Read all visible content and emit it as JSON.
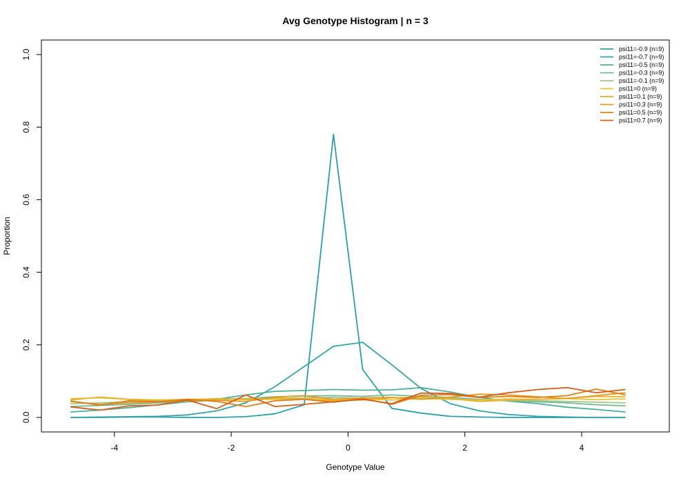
{
  "chart_data": {
    "type": "line",
    "title": "Avg Genotype Histogram | n = 3",
    "xlabel": "Genotype Value",
    "ylabel": "Proportion",
    "xlim": [
      -5.25,
      5.5
    ],
    "ylim": [
      -0.04,
      1.04
    ],
    "xticks": [
      -4,
      -2,
      0,
      2,
      4
    ],
    "yticks": [
      0.0,
      0.2,
      0.4,
      0.6,
      0.8,
      1.0
    ],
    "xtick_labels": [
      "-4",
      "-2",
      "0",
      "2",
      "4"
    ],
    "ytick_labels": [
      "0.0",
      "0.2",
      "0.4",
      "0.6",
      "0.8",
      "1.0"
    ],
    "grid": false,
    "legend_position": "top-right",
    "x": [
      -4.75,
      -4.25,
      -3.75,
      -3.25,
      -2.75,
      -2.25,
      -1.75,
      -1.25,
      -0.75,
      -0.25,
      0.25,
      0.75,
      1.25,
      1.75,
      2.25,
      2.75,
      3.25,
      3.75,
      4.25,
      4.75
    ],
    "series": [
      {
        "name": "psi11=-0.9 (n=9)",
        "color": "#2a9fa8",
        "values": [
          0.0,
          0.0,
          0.001,
          0.001,
          0.0,
          0.0,
          0.002,
          0.01,
          0.035,
          0.78,
          0.132,
          0.025,
          0.012,
          0.003,
          0.001,
          0.0,
          0.0,
          0.0,
          0.0,
          0.0
        ]
      },
      {
        "name": "psi11=-0.7 (n=9)",
        "color": "#36a3a6",
        "values": [
          0.0,
          0.001,
          0.002,
          0.003,
          0.007,
          0.018,
          0.04,
          0.085,
          0.14,
          0.196,
          0.207,
          0.145,
          0.08,
          0.038,
          0.018,
          0.008,
          0.003,
          0.001,
          0.0,
          0.0
        ]
      },
      {
        "name": "psi11=-0.5 (n=9)",
        "color": "#4eae98",
        "values": [
          0.015,
          0.02,
          0.027,
          0.035,
          0.043,
          0.05,
          0.062,
          0.072,
          0.074,
          0.077,
          0.075,
          0.076,
          0.082,
          0.07,
          0.055,
          0.045,
          0.038,
          0.028,
          0.022,
          0.015
        ]
      },
      {
        "name": "psi11=-0.3 (n=9)",
        "color": "#72b993",
        "values": [
          0.03,
          0.033,
          0.036,
          0.04,
          0.043,
          0.048,
          0.052,
          0.057,
          0.059,
          0.06,
          0.058,
          0.062,
          0.058,
          0.055,
          0.05,
          0.046,
          0.043,
          0.04,
          0.035,
          0.032
        ]
      },
      {
        "name": "psi11=-0.1 (n=9)",
        "color": "#9ec789",
        "values": [
          0.038,
          0.04,
          0.043,
          0.046,
          0.048,
          0.05,
          0.052,
          0.053,
          0.054,
          0.055,
          0.053,
          0.054,
          0.052,
          0.05,
          0.048,
          0.047,
          0.046,
          0.044,
          0.042,
          0.04
        ]
      },
      {
        "name": "psi11=0 (n=9)",
        "color": "#e6c43a",
        "values": [
          0.052,
          0.054,
          0.05,
          0.048,
          0.05,
          0.051,
          0.049,
          0.05,
          0.052,
          0.049,
          0.051,
          0.048,
          0.052,
          0.05,
          0.048,
          0.051,
          0.05,
          0.052,
          0.049,
          0.051
        ]
      },
      {
        "name": "psi11=0.1 (n=9)",
        "color": "#e8b12a",
        "values": [
          0.048,
          0.056,
          0.05,
          0.046,
          0.047,
          0.052,
          0.05,
          0.054,
          0.05,
          0.046,
          0.048,
          0.054,
          0.056,
          0.052,
          0.044,
          0.048,
          0.05,
          0.053,
          0.058,
          0.057
        ]
      },
      {
        "name": "psi11=0.3 (n=9)",
        "color": "#e59a1f",
        "values": [
          0.044,
          0.036,
          0.04,
          0.043,
          0.046,
          0.047,
          0.044,
          0.056,
          0.06,
          0.05,
          0.054,
          0.055,
          0.05,
          0.056,
          0.064,
          0.062,
          0.057,
          0.052,
          0.06,
          0.068
        ]
      },
      {
        "name": "psi11=0.5 (n=9)",
        "color": "#e07f1a",
        "values": [
          0.045,
          0.034,
          0.046,
          0.043,
          0.05,
          0.044,
          0.03,
          0.046,
          0.05,
          0.042,
          0.052,
          0.036,
          0.061,
          0.063,
          0.055,
          0.058,
          0.055,
          0.06,
          0.078,
          0.062
        ]
      },
      {
        "name": "psi11=0.7 (n=9)",
        "color": "#d45f1c",
        "values": [
          0.029,
          0.02,
          0.032,
          0.034,
          0.048,
          0.024,
          0.062,
          0.03,
          0.036,
          0.043,
          0.05,
          0.038,
          0.067,
          0.066,
          0.056,
          0.068,
          0.077,
          0.082,
          0.068,
          0.077
        ]
      }
    ]
  }
}
